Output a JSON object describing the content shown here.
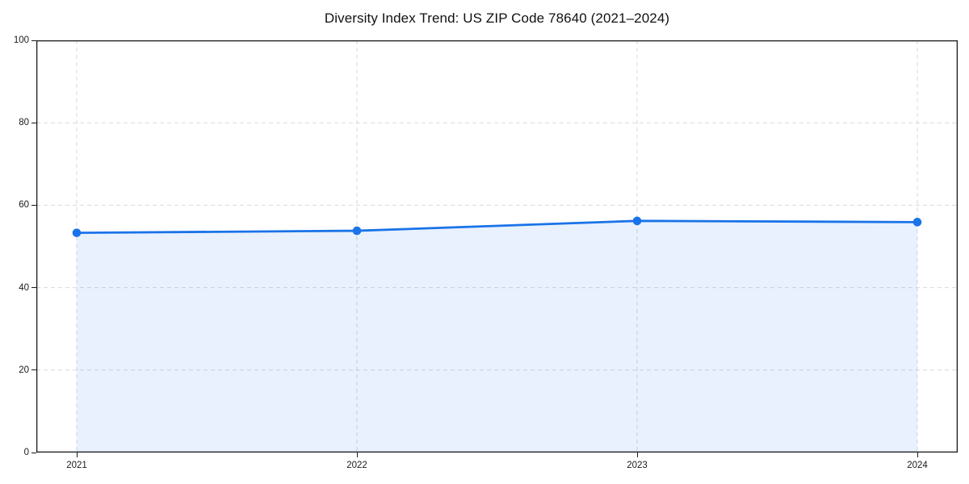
{
  "chart_data": {
    "type": "area",
    "title": "Diversity Index Trend: US ZIP Code 78640 (2021–2024)",
    "x": [
      "2021",
      "2022",
      "2023",
      "2024"
    ],
    "series": [
      {
        "name": "Diversity Index",
        "values": [
          53.3,
          53.8,
          56.2,
          55.9
        ]
      }
    ],
    "xlabel": "",
    "ylabel": "",
    "ylim": [
      0,
      100
    ],
    "yticks": [
      0,
      20,
      40,
      60,
      80,
      100
    ],
    "grid": true,
    "grid_style": "dashed",
    "legend_position": "none",
    "marker": "circle",
    "colors": {
      "line": "#1a73e8",
      "fill": "#1a73e8",
      "fill_opacity": 0.1,
      "grid": "#d9d9d9",
      "spine": "#1a1a1a",
      "text": "#1a1a1a",
      "background": "#ffffff"
    }
  }
}
